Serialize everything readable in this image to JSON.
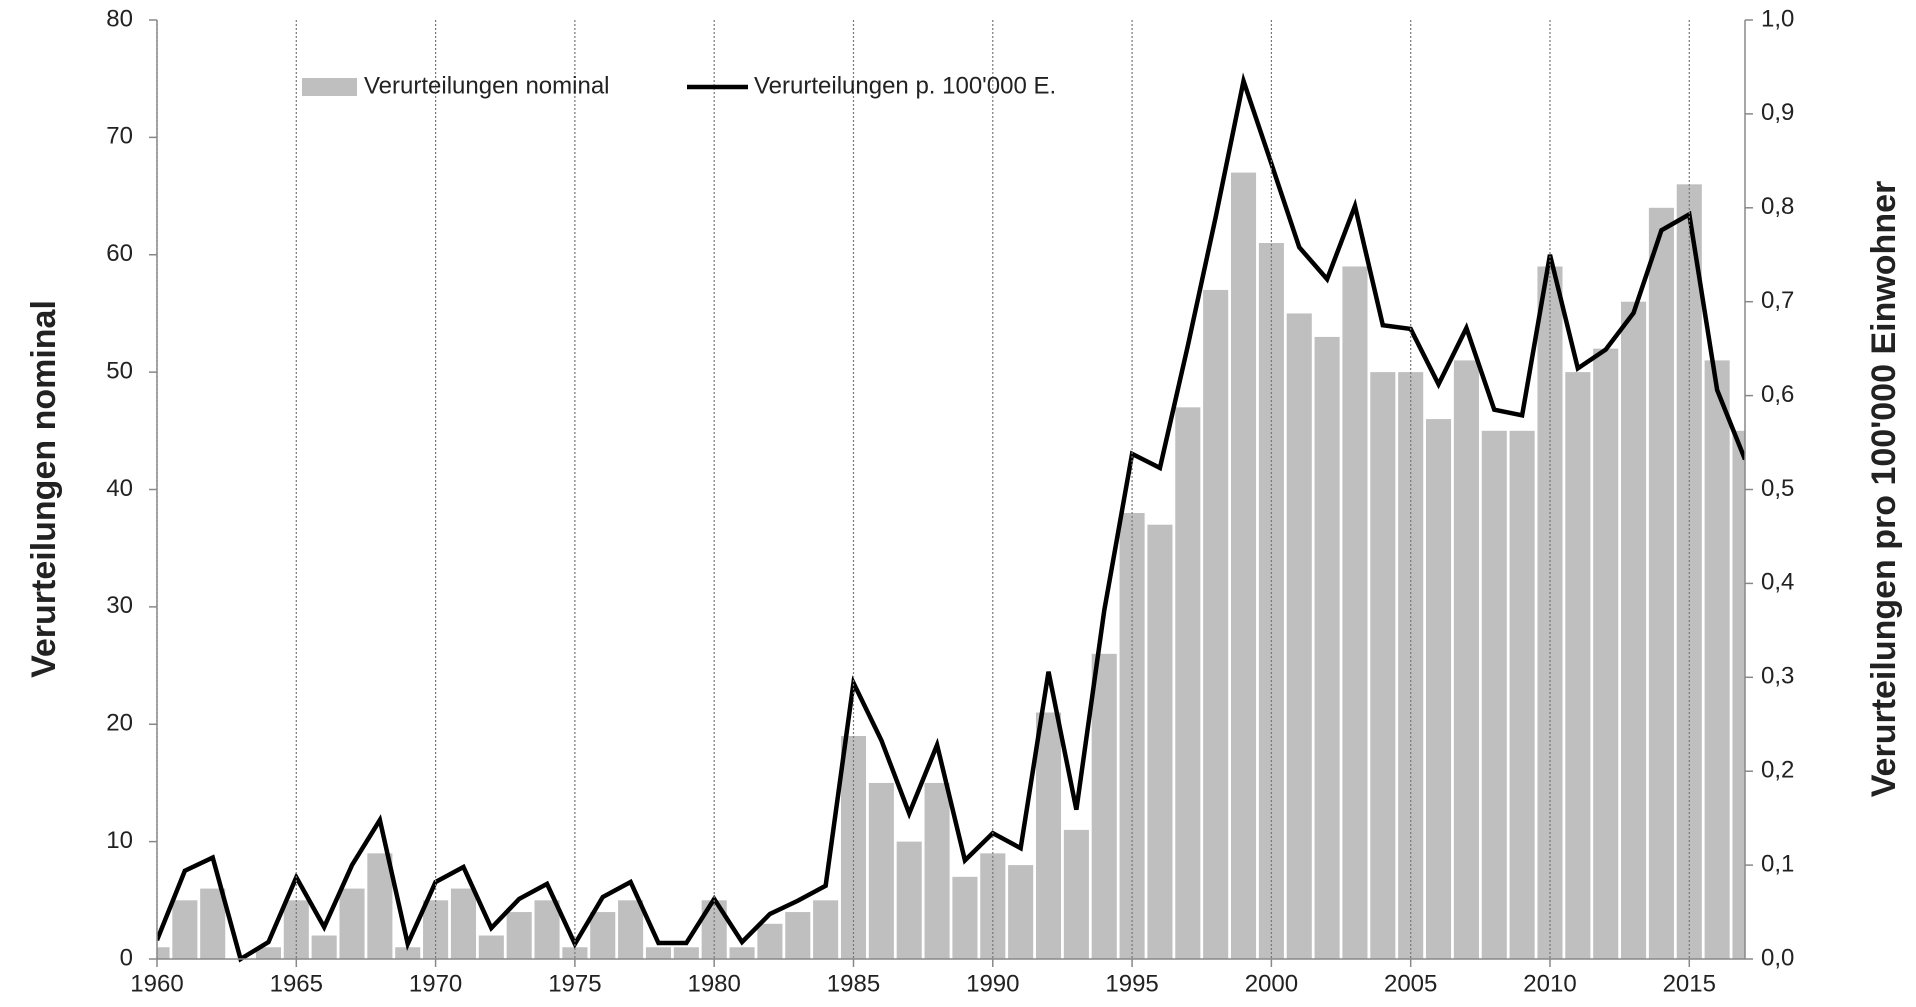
{
  "chart_data": {
    "type": "bar",
    "y_label": "Verurteilungen nominal",
    "y2_label": "Verurteilungen pro 100'000 Einwohner",
    "x": [
      1960,
      1961,
      1962,
      1963,
      1964,
      1965,
      1966,
      1967,
      1968,
      1969,
      1970,
      1971,
      1972,
      1973,
      1974,
      1975,
      1976,
      1977,
      1978,
      1979,
      1980,
      1981,
      1982,
      1983,
      1984,
      1985,
      1986,
      1987,
      1988,
      1989,
      1990,
      1991,
      1992,
      1993,
      1994,
      1995,
      1996,
      1997,
      1998,
      1999,
      2000,
      2001,
      2002,
      2003,
      2004,
      2005,
      2006,
      2007,
      2008,
      2009,
      2010,
      2011,
      2012,
      2013,
      2014,
      2015,
      2016,
      2017
    ],
    "series": [
      {
        "name": "Verurteilungen nominal",
        "type": "bar",
        "color": "#bfbfbf",
        "values": [
          1,
          5,
          6,
          0,
          1,
          5,
          2,
          6,
          9,
          1,
          5,
          6,
          2,
          4,
          5,
          1,
          4,
          5,
          1,
          1,
          5,
          1,
          3,
          4,
          5,
          19,
          15,
          10,
          15,
          7,
          9,
          8,
          21,
          11,
          26,
          38,
          37,
          47,
          57,
          67,
          61,
          55,
          53,
          59,
          50,
          50,
          46,
          51,
          45,
          45,
          59,
          50,
          52,
          56,
          64,
          66,
          51,
          45
        ]
      },
      {
        "name": "Verurteilungen p. 100'000 E.",
        "type": "line",
        "axis": "y2",
        "color": "#000000",
        "values": [
          0.02,
          0.094,
          0.108,
          0.0,
          0.018,
          0.087,
          0.034,
          0.1,
          0.148,
          0.016,
          0.082,
          0.098,
          0.033,
          0.064,
          0.08,
          0.016,
          0.066,
          0.082,
          0.017,
          0.017,
          0.064,
          0.018,
          0.048,
          0.062,
          0.078,
          0.294,
          0.233,
          0.155,
          0.228,
          0.105,
          0.134,
          0.118,
          0.306,
          0.159,
          0.371,
          0.538,
          0.523,
          0.653,
          0.79,
          0.935,
          0.847,
          0.758,
          0.724,
          0.802,
          0.675,
          0.671,
          0.612,
          0.672,
          0.585,
          0.579,
          0.75,
          0.629,
          0.649,
          0.688,
          0.776,
          0.793,
          0.606,
          0.532
        ]
      }
    ],
    "xlim": [
      1960,
      2017
    ],
    "xticks": [
      1960,
      1965,
      1970,
      1975,
      1980,
      1985,
      1990,
      1995,
      2000,
      2005,
      2010,
      2015
    ],
    "ylim": [
      0,
      80
    ],
    "yticks": [
      0,
      10,
      20,
      30,
      40,
      50,
      60,
      70,
      80
    ],
    "y2lim": [
      0,
      1
    ],
    "y2ticks": [
      {
        "value": 0,
        "label": "0,0"
      },
      {
        "value": 0.1,
        "label": "0,1"
      },
      {
        "value": 0.2,
        "label": "0,2"
      },
      {
        "value": 0.3,
        "label": "0,3"
      },
      {
        "value": 0.4,
        "label": "0,4"
      },
      {
        "value": 0.5,
        "label": "0,5"
      },
      {
        "value": 0.6,
        "label": "0,6"
      },
      {
        "value": 0.7,
        "label": "0,7"
      },
      {
        "value": 0.8,
        "label": "0,8"
      },
      {
        "value": 0.9,
        "label": "0,9"
      },
      {
        "value": 1,
        "label": "1,0"
      }
    ],
    "x_grid": true,
    "legend": "top"
  }
}
